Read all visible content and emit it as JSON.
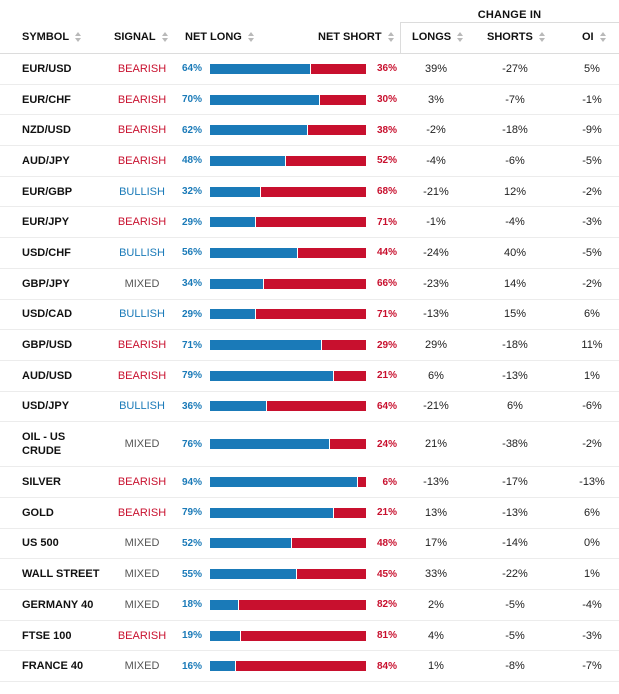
{
  "header": {
    "group_title": "CHANGE IN",
    "columns": {
      "symbol": "SYMBOL",
      "signal": "SIGNAL",
      "net_long": "NET LONG",
      "net_short": "NET SHORT",
      "longs": "LONGS",
      "shorts": "SHORTS",
      "oi": "OI"
    }
  },
  "colors": {
    "bullish": "#1a7ab8",
    "bearish": "#c8102e",
    "mixed": "#555555"
  },
  "rows": [
    {
      "symbol": "EUR/USD",
      "signal": "BEARISH",
      "net_long": "64%",
      "net_short": "36%",
      "long_fraction": 0.64,
      "longs": "39%",
      "shorts": "-27%",
      "oi": "5%"
    },
    {
      "symbol": "EUR/CHF",
      "signal": "BEARISH",
      "net_long": "70%",
      "net_short": "30%",
      "long_fraction": 0.7,
      "longs": "3%",
      "shorts": "-7%",
      "oi": "-1%"
    },
    {
      "symbol": "NZD/USD",
      "signal": "BEARISH",
      "net_long": "62%",
      "net_short": "38%",
      "long_fraction": 0.62,
      "longs": "-2%",
      "shorts": "-18%",
      "oi": "-9%"
    },
    {
      "symbol": "AUD/JPY",
      "signal": "BEARISH",
      "net_long": "48%",
      "net_short": "52%",
      "long_fraction": 0.48,
      "longs": "-4%",
      "shorts": "-6%",
      "oi": "-5%"
    },
    {
      "symbol": "EUR/GBP",
      "signal": "BULLISH",
      "net_long": "32%",
      "net_short": "68%",
      "long_fraction": 0.32,
      "longs": "-21%",
      "shorts": "12%",
      "oi": "-2%"
    },
    {
      "symbol": "EUR/JPY",
      "signal": "BEARISH",
      "net_long": "29%",
      "net_short": "71%",
      "long_fraction": 0.29,
      "longs": "-1%",
      "shorts": "-4%",
      "oi": "-3%"
    },
    {
      "symbol": "USD/CHF",
      "signal": "BULLISH",
      "net_long": "56%",
      "net_short": "44%",
      "long_fraction": 0.56,
      "longs": "-24%",
      "shorts": "40%",
      "oi": "-5%"
    },
    {
      "symbol": "GBP/JPY",
      "signal": "MIXED",
      "net_long": "34%",
      "net_short": "66%",
      "long_fraction": 0.34,
      "longs": "-23%",
      "shorts": "14%",
      "oi": "-2%"
    },
    {
      "symbol": "USD/CAD",
      "signal": "BULLISH",
      "net_long": "29%",
      "net_short": "71%",
      "long_fraction": 0.29,
      "longs": "-13%",
      "shorts": "15%",
      "oi": "6%"
    },
    {
      "symbol": "GBP/USD",
      "signal": "BEARISH",
      "net_long": "71%",
      "net_short": "29%",
      "long_fraction": 0.71,
      "longs": "29%",
      "shorts": "-18%",
      "oi": "11%"
    },
    {
      "symbol": "AUD/USD",
      "signal": "BEARISH",
      "net_long": "79%",
      "net_short": "21%",
      "long_fraction": 0.79,
      "longs": "6%",
      "shorts": "-13%",
      "oi": "1%"
    },
    {
      "symbol": "USD/JPY",
      "signal": "BULLISH",
      "net_long": "36%",
      "net_short": "64%",
      "long_fraction": 0.36,
      "longs": "-21%",
      "shorts": "6%",
      "oi": "-6%"
    },
    {
      "symbol": "OIL - US CRUDE",
      "signal": "MIXED",
      "net_long": "76%",
      "net_short": "24%",
      "long_fraction": 0.76,
      "longs": "21%",
      "shorts": "-38%",
      "oi": "-2%"
    },
    {
      "symbol": "SILVER",
      "signal": "BEARISH",
      "net_long": "94%",
      "net_short": "6%",
      "long_fraction": 0.94,
      "longs": "-13%",
      "shorts": "-17%",
      "oi": "-13%"
    },
    {
      "symbol": "GOLD",
      "signal": "BEARISH",
      "net_long": "79%",
      "net_short": "21%",
      "long_fraction": 0.79,
      "longs": "13%",
      "shorts": "-13%",
      "oi": "6%"
    },
    {
      "symbol": "US 500",
      "signal": "MIXED",
      "net_long": "52%",
      "net_short": "48%",
      "long_fraction": 0.52,
      "longs": "17%",
      "shorts": "-14%",
      "oi": "0%"
    },
    {
      "symbol": "WALL STREET",
      "signal": "MIXED",
      "net_long": "55%",
      "net_short": "45%",
      "long_fraction": 0.55,
      "longs": "33%",
      "shorts": "-22%",
      "oi": "1%"
    },
    {
      "symbol": "GERMANY 40",
      "signal": "MIXED",
      "net_long": "18%",
      "net_short": "82%",
      "long_fraction": 0.18,
      "longs": "2%",
      "shorts": "-5%",
      "oi": "-4%"
    },
    {
      "symbol": "FTSE 100",
      "signal": "BEARISH",
      "net_long": "19%",
      "net_short": "81%",
      "long_fraction": 0.19,
      "longs": "4%",
      "shorts": "-5%",
      "oi": "-3%"
    },
    {
      "symbol": "FRANCE 40",
      "signal": "MIXED",
      "net_long": "16%",
      "net_short": "84%",
      "long_fraction": 0.16,
      "longs": "1%",
      "shorts": "-8%",
      "oi": "-7%"
    }
  ]
}
